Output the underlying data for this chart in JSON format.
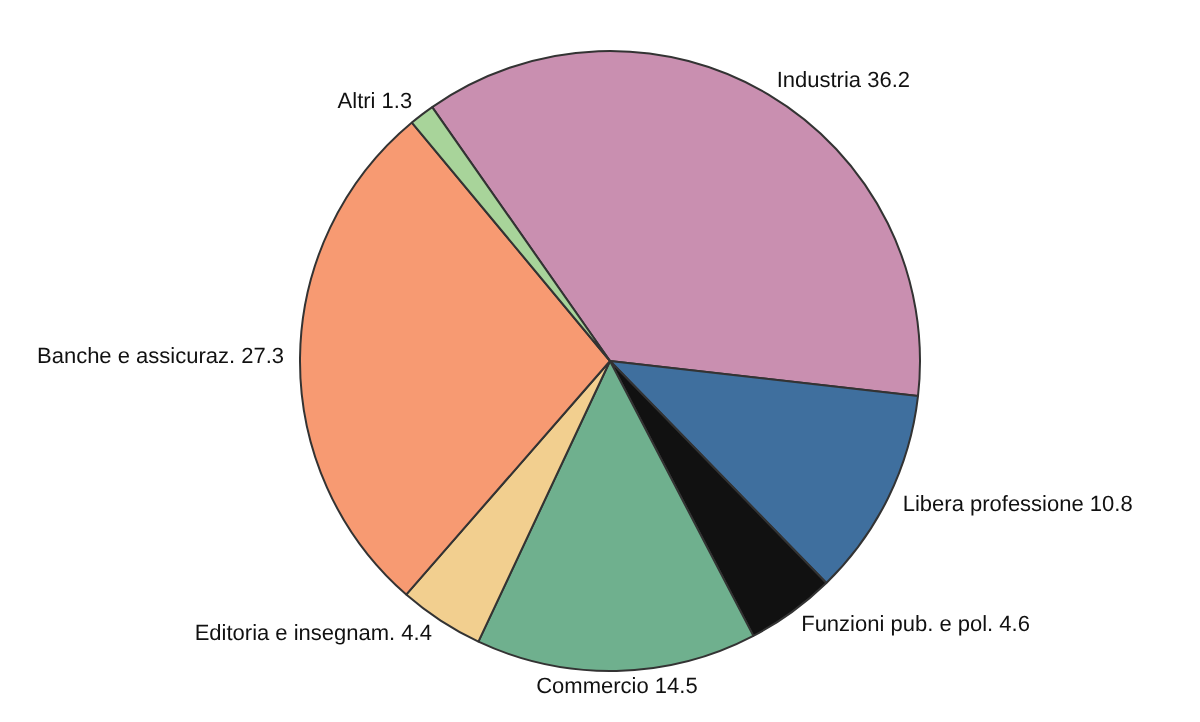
{
  "chart_data": {
    "type": "pie",
    "categories": [
      "Industria",
      "Libera professione",
      "Funzioni pub. e pol.",
      "Commercio",
      "Editoria e insegnam.",
      "Banche e assicuraz.",
      "Altri"
    ],
    "values": [
      36.2,
      10.8,
      4.6,
      14.5,
      4.4,
      27.3,
      1.3
    ],
    "colors": [
      "#c98fb0",
      "#3f6f9e",
      "#111111",
      "#6fb08e",
      "#f2cf8f",
      "#f79a72",
      "#a8d49a"
    ],
    "data_labels": true,
    "legend": false
  }
}
